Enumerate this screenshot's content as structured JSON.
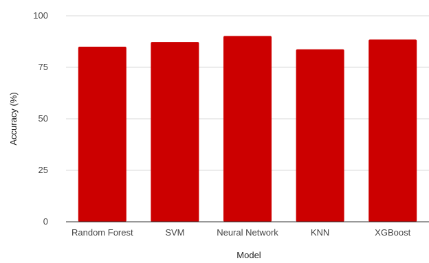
{
  "chart_data": {
    "type": "bar",
    "xlabel": "Model",
    "ylabel": "Accuracy (%)",
    "categories": [
      "Random Forest",
      "SVM",
      "Neural Network",
      "KNN",
      "XGBoost"
    ],
    "values": [
      85,
      87.3,
      90.2,
      83.7,
      88.5
    ],
    "ylim": [
      0,
      100
    ],
    "yticks": [
      0,
      25,
      50,
      75,
      100
    ],
    "grid": true,
    "legend": "none",
    "bar_color": "#cc0000"
  }
}
